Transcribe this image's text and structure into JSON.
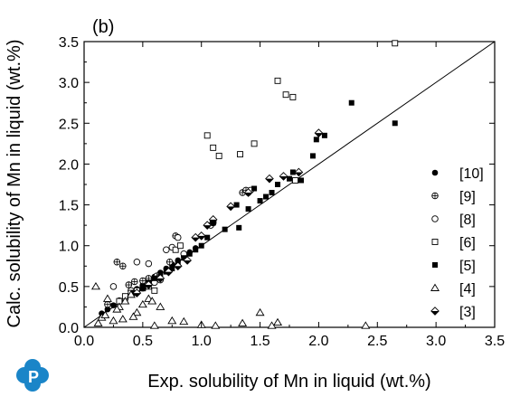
{
  "chart_data": {
    "type": "scatter",
    "panel_label": "(b)",
    "xlabel": "Exp. solubility of Mn in liquid (wt.%)",
    "ylabel": "Calc. solubility of Mn in liquid (wt.%)",
    "xlim": [
      0.0,
      3.5
    ],
    "ylim": [
      0.0,
      3.5
    ],
    "xticks": [
      "0.0",
      "0.5",
      "1.0",
      "1.5",
      "2.0",
      "2.5",
      "3.0",
      "3.5"
    ],
    "yticks": [
      "0.0",
      "0.5",
      "1.0",
      "1.5",
      "2.0",
      "2.5",
      "3.0",
      "3.5"
    ],
    "legend_position": "lower-right",
    "reference_line": {
      "x": [
        0.0,
        3.5
      ],
      "y": [
        0.0,
        3.5
      ]
    },
    "series": [
      {
        "name": "[10]",
        "marker": "filled-circle",
        "x": [
          0.15,
          0.2,
          0.25,
          0.3,
          0.35,
          0.4,
          0.45,
          0.5,
          0.55,
          0.6,
          0.65,
          0.7,
          0.75,
          0.8,
          0.85,
          0.9,
          0.95
        ],
        "y": [
          0.17,
          0.22,
          0.27,
          0.33,
          0.37,
          0.42,
          0.47,
          0.52,
          0.57,
          0.62,
          0.67,
          0.72,
          0.77,
          0.82,
          0.87,
          0.92,
          0.97
        ]
      },
      {
        "name": "[9]",
        "marker": "circle-plus",
        "x": [
          0.2,
          0.28,
          0.33,
          0.38,
          0.43,
          0.5,
          0.55,
          0.62,
          0.73,
          0.78,
          1.1,
          1.35,
          1.38
        ],
        "y": [
          0.28,
          0.8,
          0.75,
          0.52,
          0.56,
          0.57,
          0.6,
          0.63,
          0.8,
          1.12,
          1.3,
          1.65,
          1.68
        ]
      },
      {
        "name": "[8]",
        "marker": "open-circle",
        "x": [
          0.25,
          0.35,
          0.4,
          0.45,
          0.5,
          0.55,
          0.6,
          0.65,
          0.7,
          0.75,
          0.8,
          0.85,
          1.08,
          1.1,
          1.4,
          1.42
        ],
        "y": [
          0.5,
          0.35,
          0.45,
          0.8,
          0.48,
          0.78,
          0.55,
          0.58,
          0.95,
          0.98,
          1.1,
          0.9,
          1.25,
          1.28,
          1.65,
          1.68
        ]
      },
      {
        "name": "[6]",
        "marker": "open-square",
        "x": [
          0.3,
          0.35,
          0.4,
          0.45,
          0.5,
          0.55,
          0.6,
          0.78,
          0.82,
          1.05,
          1.1,
          1.15,
          1.33,
          1.45,
          1.65,
          1.72,
          1.78,
          1.8,
          2.65
        ],
        "y": [
          0.32,
          0.38,
          0.42,
          0.45,
          0.48,
          0.5,
          0.45,
          0.95,
          1.0,
          2.35,
          2.2,
          2.1,
          2.12,
          2.25,
          3.02,
          2.85,
          2.82,
          1.8,
          3.48
        ]
      },
      {
        "name": "[5]",
        "marker": "filled-square",
        "x": [
          0.42,
          0.5,
          0.55,
          0.6,
          0.65,
          0.7,
          0.75,
          0.8,
          0.85,
          0.9,
          0.95,
          1.0,
          1.05,
          1.1,
          1.2,
          1.3,
          1.32,
          1.4,
          1.45,
          1.5,
          1.55,
          1.6,
          1.65,
          1.75,
          1.78,
          1.85,
          1.95,
          1.98,
          2.05,
          2.28,
          2.65
        ],
        "y": [
          0.42,
          0.48,
          0.55,
          0.6,
          0.62,
          0.68,
          0.72,
          0.78,
          0.85,
          0.9,
          0.95,
          1.0,
          1.1,
          1.28,
          1.2,
          1.5,
          1.22,
          1.45,
          1.7,
          1.55,
          1.6,
          1.65,
          1.75,
          1.82,
          1.9,
          1.8,
          2.1,
          2.3,
          2.35,
          2.75,
          2.5
        ]
      },
      {
        "name": "[4]",
        "marker": "open-triangle",
        "x": [
          0.1,
          0.15,
          0.2,
          0.25,
          0.3,
          0.35,
          0.4,
          0.45,
          0.5,
          0.55,
          0.6,
          0.65,
          0.75,
          0.85,
          1.0,
          1.35,
          1.5,
          1.6,
          1.65,
          2.4,
          0.12,
          0.18,
          0.28,
          0.33,
          0.42,
          0.58,
          1.12
        ],
        "y": [
          0.5,
          0.12,
          0.35,
          0.08,
          0.25,
          0.32,
          0.4,
          0.18,
          0.28,
          0.35,
          0.02,
          0.25,
          0.08,
          0.07,
          0.03,
          0.05,
          0.18,
          0.02,
          0.06,
          0.02,
          0.05,
          0.15,
          0.22,
          0.1,
          0.13,
          0.32,
          0.02
        ]
      },
      {
        "name": "[3]",
        "marker": "half-diamond",
        "x": [
          0.45,
          0.55,
          0.65,
          0.72,
          0.8,
          0.88,
          0.95,
          1.0,
          1.05,
          1.1,
          1.25,
          1.4,
          1.58,
          1.7,
          1.83,
          2.0
        ],
        "y": [
          0.42,
          0.52,
          0.6,
          0.68,
          0.75,
          0.82,
          1.1,
          1.12,
          1.25,
          1.32,
          1.48,
          1.65,
          1.82,
          1.85,
          1.9,
          2.38
        ]
      }
    ]
  }
}
